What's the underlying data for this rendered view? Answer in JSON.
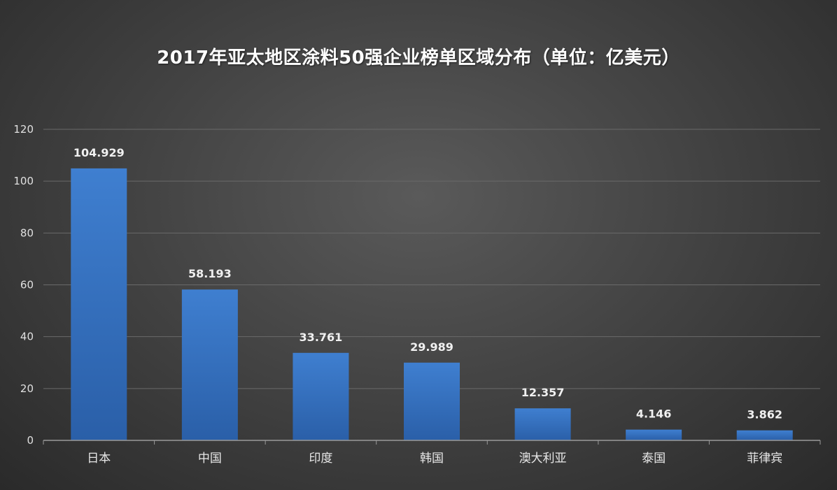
{
  "chart_data": {
    "type": "bar",
    "title": "2017年亚太地区涂料50强企业榜单区域分布（单位：亿美元）",
    "categories": [
      "日本",
      "中国",
      "印度",
      "韩国",
      "澳大利亚",
      "泰国",
      "菲律宾"
    ],
    "values": [
      104.929,
      58.193,
      33.761,
      29.989,
      12.357,
      4.146,
      3.862
    ],
    "data_labels": [
      "104.929",
      "58.193",
      "33.761",
      "29.989",
      "12.357",
      "4.146",
      "3.862"
    ],
    "y_ticks": [
      "0",
      "20",
      "40",
      "60",
      "80",
      "100",
      "120"
    ],
    "ylim": [
      0,
      120
    ],
    "xlabel": "",
    "ylabel": "",
    "grid": true,
    "legend": "none",
    "bar_color": "#3f7fd0",
    "bar_color_dark": "#2a5fa8",
    "grid_color": "#6a6a6a"
  }
}
